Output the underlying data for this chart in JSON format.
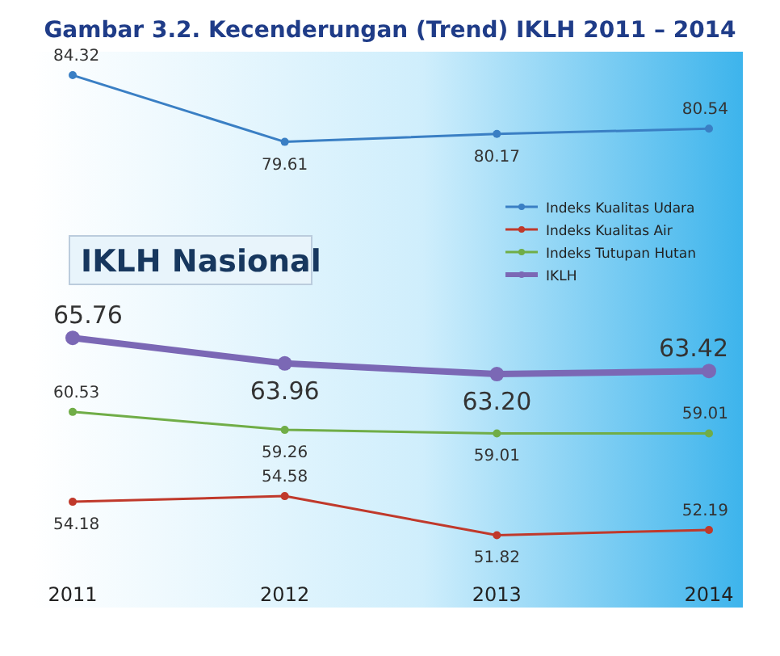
{
  "chart_data": {
    "type": "line",
    "title": "Gambar 3.2. Kecenderungan (Trend) IKLH 2011 – 2014",
    "annotations": [
      "IKLH Nasional"
    ],
    "categories": [
      "2011",
      "2012",
      "2013",
      "2014"
    ],
    "legend": "top right",
    "marker": "circle",
    "line_style": "solid",
    "series": [
      {
        "name": "Indeks Kualitas Udara",
        "color": "#3a7fc4",
        "values": [
          84.32,
          79.61,
          80.17,
          80.54
        ],
        "value_labels": [
          "84.32",
          "79.61",
          "80.17",
          "80.54"
        ]
      },
      {
        "name": "Indeks Kualitas Air",
        "color": "#c0392b",
        "values": [
          54.18,
          54.58,
          51.82,
          52.19
        ],
        "value_labels": [
          "54.18",
          "54.58",
          "51.82",
          "52.19"
        ]
      },
      {
        "name": "Indeks Tutupan Hutan",
        "color": "#70ad47",
        "values": [
          60.53,
          59.26,
          59.01,
          59.01
        ],
        "value_labels": [
          "60.53",
          "59.26",
          "59.01",
          "59.01"
        ]
      },
      {
        "name": "IKLH",
        "color": "#7b68b5",
        "values": [
          65.76,
          63.96,
          63.2,
          63.42
        ],
        "value_labels": [
          "65.76",
          "63.96",
          "63.20",
          "63.42"
        ]
      }
    ]
  }
}
